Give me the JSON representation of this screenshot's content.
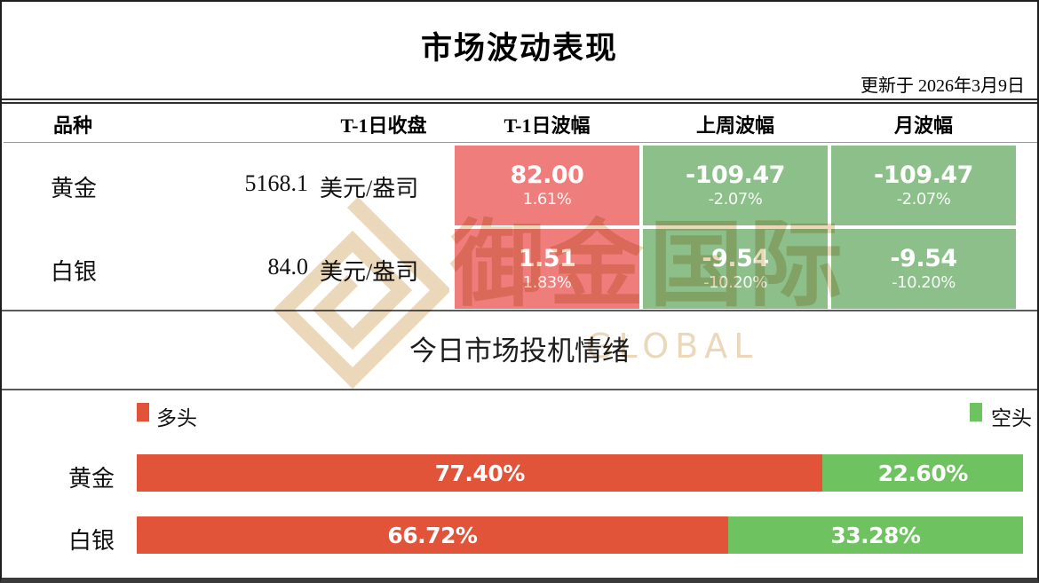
{
  "colors": {
    "table_red": "#ee7d7b",
    "table_green": "#8dbf8b",
    "bar_red": "#e2543a",
    "bar_green": "#6fc260",
    "watermark_gold": "#d9b37a"
  },
  "header": {
    "title": "市场波动表现",
    "updated": "更新于 2026年3月9日"
  },
  "table": {
    "columns": {
      "variety": "品种",
      "close": "T-1日收盘",
      "t1_range": "T-1日波幅",
      "week_range": "上周波幅",
      "month_range": "月波幅"
    },
    "rows": [
      {
        "name": "黄金",
        "close": "5168.1",
        "unit": "美元/盎司",
        "t1": {
          "value": "82.00",
          "pct": "1.61%"
        },
        "week": {
          "value": "-109.47",
          "pct": "-2.07%"
        },
        "month": {
          "value": "-109.47",
          "pct": "-2.07%"
        }
      },
      {
        "name": "白银",
        "close": "84.0",
        "unit": "美元/盎司",
        "t1": {
          "value": "1.51",
          "pct": "1.83%"
        },
        "week": {
          "value": "-9.54",
          "pct": "-10.20%"
        },
        "month": {
          "value": "-9.54",
          "pct": "-10.20%"
        }
      }
    ]
  },
  "watermark": {
    "cn_text": "御金国际",
    "en_text": "GLOBAL"
  },
  "sentiment": {
    "title": "今日市场投机情绪",
    "legend": {
      "long": "多头",
      "short": "空头"
    },
    "bars": [
      {
        "name": "黄金",
        "long_pct": 77.4,
        "short_pct": 22.6,
        "long_label": "77.40%",
        "short_label": "22.60%"
      },
      {
        "name": "白银",
        "long_pct": 66.72,
        "short_pct": 33.28,
        "long_label": "66.72%",
        "short_label": "33.28%"
      }
    ]
  },
  "chart_data": [
    {
      "type": "table",
      "title": "市场波动表现",
      "updated": "更新于 2026年3月9日",
      "columns": [
        "品种",
        "T-1日收盘",
        "T-1日波幅",
        "上周波幅",
        "月波幅"
      ],
      "rows": [
        [
          "黄金",
          "5168.1 美元/盎司",
          "82.00 (1.61%)",
          "-109.47 (-2.07%)",
          "-109.47 (-2.07%)"
        ],
        [
          "白银",
          "84.0 美元/盎司",
          "1.51 (1.83%)",
          "-9.54 (-10.20%)",
          "-9.54 (-10.20%)"
        ]
      ],
      "cell_tones": [
        [
          "none",
          "none",
          "red",
          "green",
          "green"
        ],
        [
          "none",
          "none",
          "red",
          "green",
          "green"
        ]
      ]
    },
    {
      "type": "bar",
      "subtype": "stacked-horizontal",
      "title": "今日市场投机情绪",
      "categories": [
        "黄金",
        "白银"
      ],
      "series": [
        {
          "name": "多头",
          "color": "#e2543a",
          "values": [
            77.4,
            66.72
          ]
        },
        {
          "name": "空头",
          "color": "#6fc260",
          "values": [
            22.6,
            33.28
          ]
        }
      ],
      "unit": "%",
      "xlim": [
        0,
        100
      ],
      "legend_position": "top"
    }
  ]
}
